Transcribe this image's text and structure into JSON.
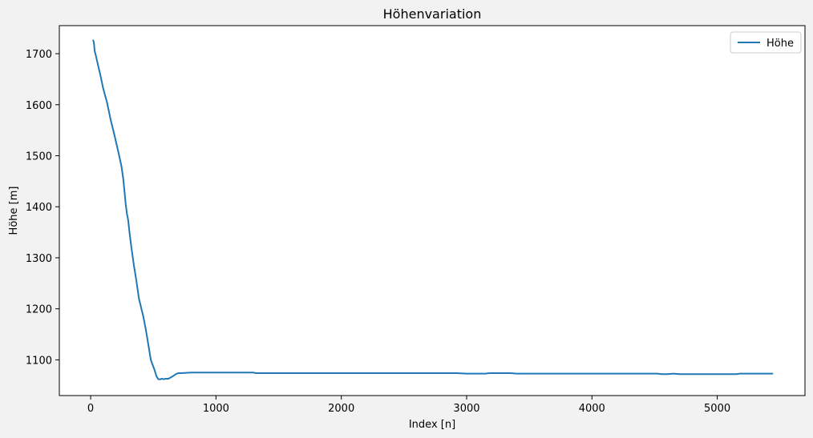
{
  "chart_data": {
    "type": "line",
    "title": "Höhenvariation",
    "xlabel": "Index [n]",
    "ylabel": "Höhe [m]",
    "xlim": [
      -250,
      5700
    ],
    "ylim": [
      1030,
      1755
    ],
    "xticks": [
      0,
      1000,
      2000,
      3000,
      4000,
      5000
    ],
    "xtick_labels": [
      "0",
      "1000",
      "2000",
      "3000",
      "4000",
      "5000"
    ],
    "yticks": [
      1100,
      1200,
      1300,
      1400,
      1500,
      1600,
      1700
    ],
    "ytick_labels": [
      "1100",
      "1200",
      "1300",
      "1400",
      "1500",
      "1600",
      "1700"
    ],
    "grid": false,
    "legend_position": "top-right",
    "series": [
      {
        "name": "Höhe",
        "color": "#1f77b4",
        "x": [
          20,
          25,
          32,
          40,
          60,
          80,
          100,
          130,
          160,
          190,
          220,
          245,
          260,
          270,
          280,
          290,
          295,
          300,
          310,
          325,
          345,
          365,
          385,
          400,
          420,
          440,
          460,
          480,
          495,
          510,
          525,
          540,
          555,
          570,
          580,
          600,
          620,
          650,
          680,
          700,
          720,
          800,
          1000,
          1200,
          1300,
          1320,
          1400,
          2000,
          2500,
          2570,
          2600,
          2920,
          3000,
          3150,
          3180,
          3350,
          3400,
          4000,
          4520,
          4560,
          4600,
          4650,
          4700,
          4750,
          5000,
          5150,
          5180,
          5300,
          5440
        ],
        "y": [
          1726,
          1723,
          1705,
          1698,
          1676,
          1655,
          1632,
          1605,
          1570,
          1540,
          1508,
          1480,
          1455,
          1430,
          1405,
          1385,
          1380,
          1372,
          1350,
          1320,
          1285,
          1255,
          1220,
          1205,
          1185,
          1160,
          1130,
          1100,
          1090,
          1080,
          1068,
          1062,
          1062,
          1063,
          1062,
          1063,
          1063,
          1067,
          1072,
          1074,
          1074,
          1075,
          1075,
          1075,
          1075,
          1074,
          1074,
          1074,
          1074,
          1074,
          1074,
          1074,
          1073,
          1073,
          1074,
          1074,
          1073,
          1073,
          1073,
          1072,
          1072,
          1073,
          1072,
          1072,
          1072,
          1072,
          1073,
          1073,
          1073
        ]
      }
    ]
  }
}
